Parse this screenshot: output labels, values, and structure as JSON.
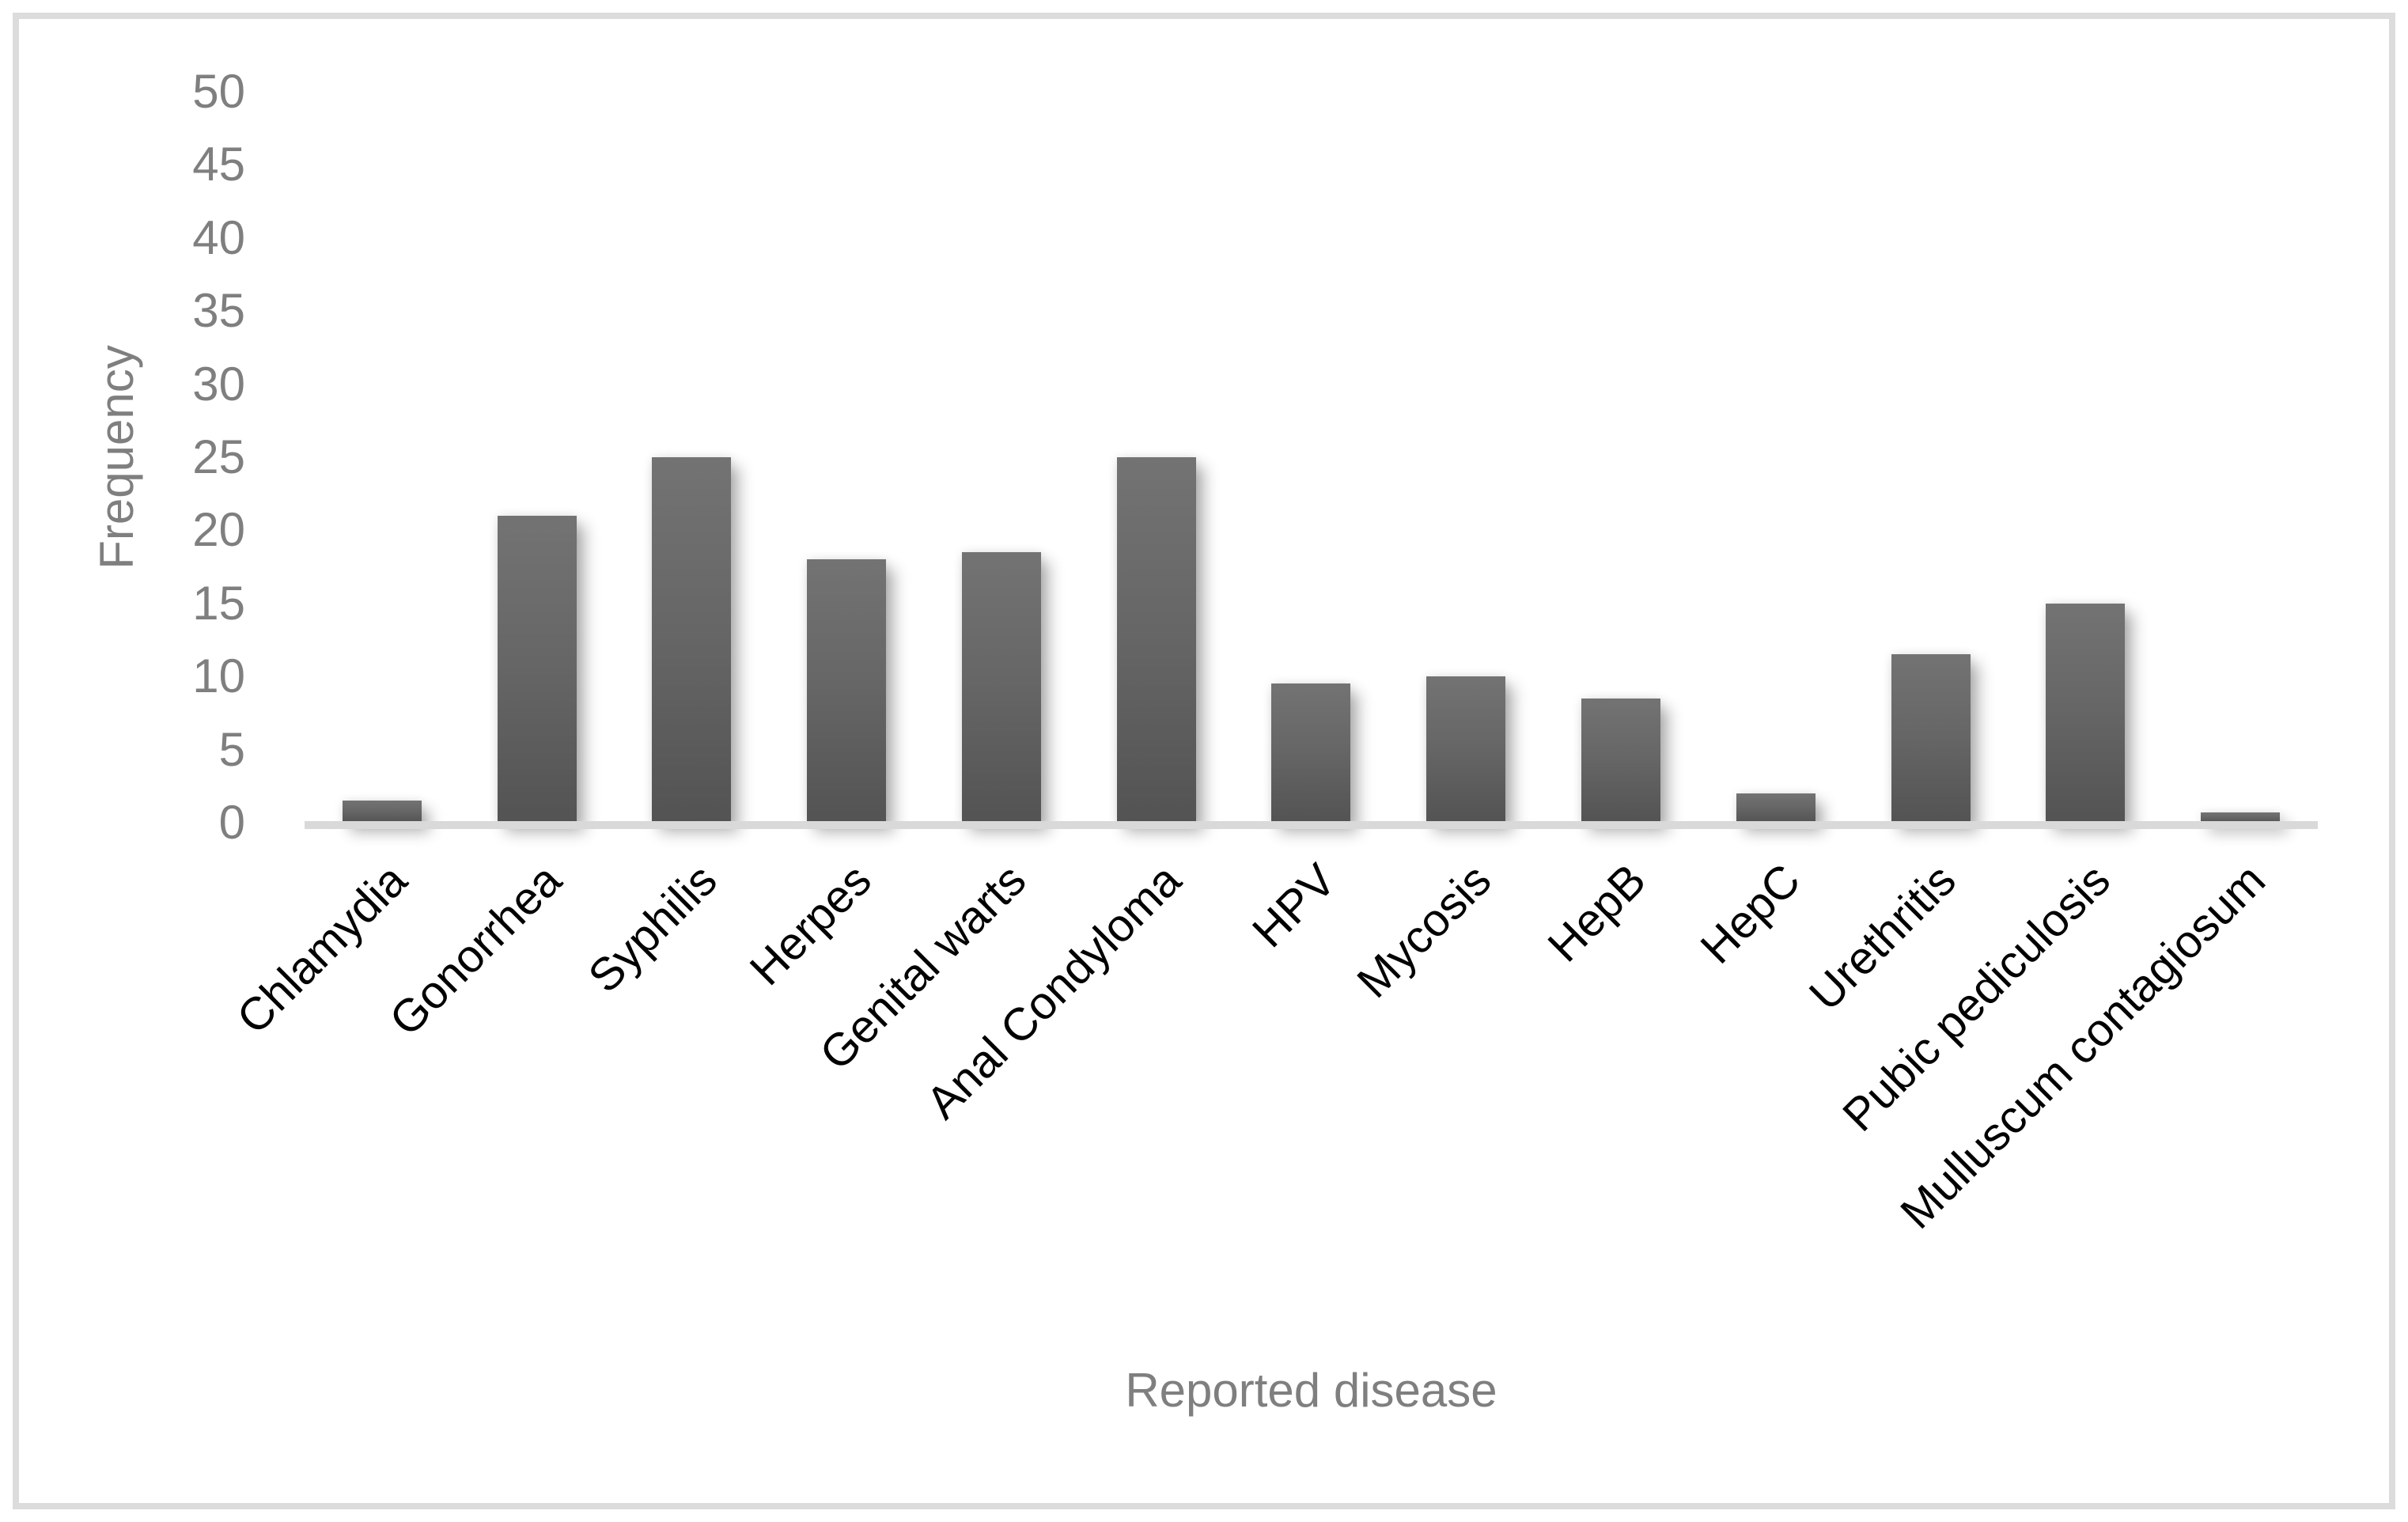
{
  "chart_data": {
    "type": "bar",
    "title": "",
    "xlabel": "Reported disease",
    "ylabel": "Frequency",
    "categories": [
      "Chlamydia",
      "Gonorrhea",
      "Syphilis",
      "Herpes",
      "Genital warts",
      "Anal Condyloma",
      "HPV",
      "Mycosis",
      "HepB",
      "HepC",
      "Urethritis",
      "Pubic pediculosis",
      "Mulluscum contagiosum"
    ],
    "values": [
      1.5,
      21,
      25,
      18,
      18.5,
      25,
      9.5,
      10,
      8.5,
      2,
      11.5,
      15,
      0.7
    ],
    "ylim": [
      0,
      50
    ],
    "yticks": [
      0,
      5,
      10,
      15,
      20,
      25,
      30,
      35,
      40,
      45,
      50
    ],
    "grid": "off",
    "legend": "none",
    "bar_color_top": "#737373",
    "bar_color_bottom": "#535353",
    "axis_line_color": "#d9d9d9",
    "axis_text_color": "#7f7f7f",
    "category_text_color": "#000000",
    "border_color": "#dcdcdc",
    "x_label_rotation_deg": -45
  }
}
